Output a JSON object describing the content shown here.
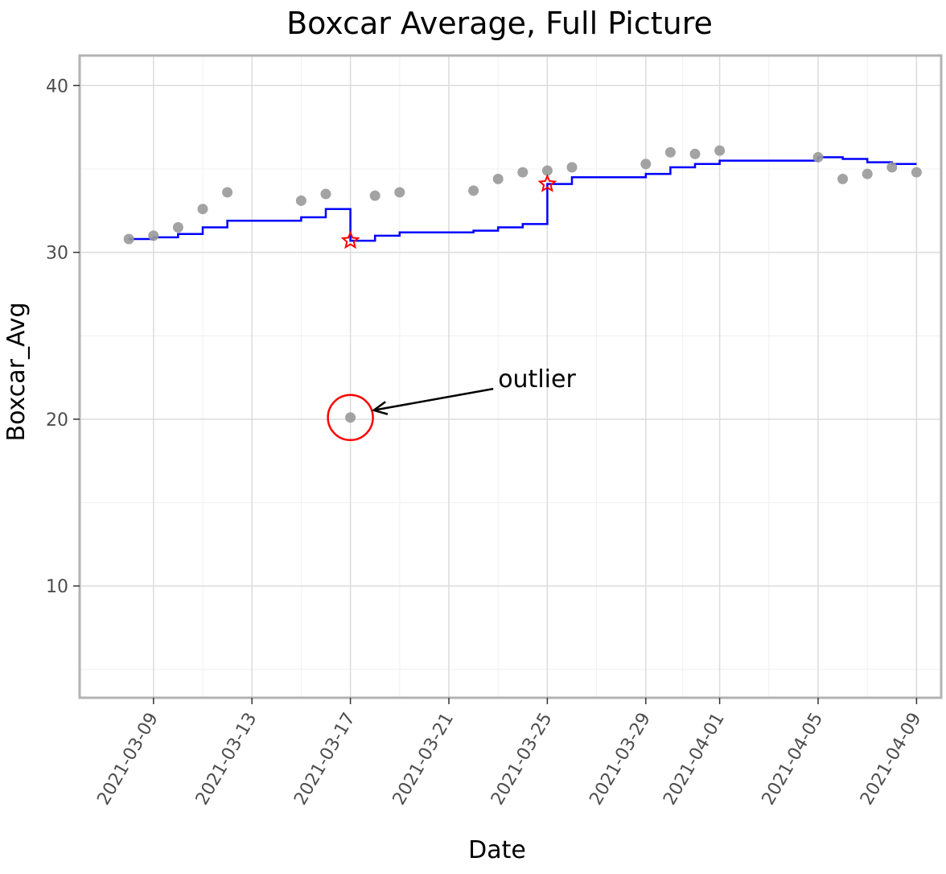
{
  "chart_data": {
    "type": "scatter",
    "title": "Boxcar Average, Full Picture",
    "xlabel": "Date",
    "ylabel": "Boxcar_Avg",
    "x_ticks": [
      "2021-03-09",
      "2021-03-13",
      "2021-03-17",
      "2021-03-21",
      "2021-03-25",
      "2021-03-29",
      "2021-04-01",
      "2021-04-05",
      "2021-04-09"
    ],
    "y_ticks": [
      "10",
      "20",
      "30",
      "40"
    ],
    "xlim": [
      "2021-03-06",
      "2021-04-10"
    ],
    "ylim": [
      3.3,
      41.8
    ],
    "grid": true,
    "points": [
      {
        "x": "2021-03-08",
        "y": 30.8
      },
      {
        "x": "2021-03-09",
        "y": 31.0
      },
      {
        "x": "2021-03-10",
        "y": 31.5
      },
      {
        "x": "2021-03-11",
        "y": 32.6
      },
      {
        "x": "2021-03-12",
        "y": 33.6
      },
      {
        "x": "2021-03-15",
        "y": 33.1
      },
      {
        "x": "2021-03-16",
        "y": 33.5
      },
      {
        "x": "2021-03-17",
        "y": 20.1
      },
      {
        "x": "2021-03-18",
        "y": 33.4
      },
      {
        "x": "2021-03-19",
        "y": 33.6
      },
      {
        "x": "2021-03-22",
        "y": 33.7
      },
      {
        "x": "2021-03-23",
        "y": 34.4
      },
      {
        "x": "2021-03-24",
        "y": 34.8
      },
      {
        "x": "2021-03-25",
        "y": 34.9
      },
      {
        "x": "2021-03-26",
        "y": 35.1
      },
      {
        "x": "2021-03-29",
        "y": 35.3
      },
      {
        "x": "2021-03-30",
        "y": 36.0
      },
      {
        "x": "2021-03-31",
        "y": 35.9
      },
      {
        "x": "2021-04-01",
        "y": 36.1
      },
      {
        "x": "2021-04-05",
        "y": 35.7
      },
      {
        "x": "2021-04-06",
        "y": 34.4
      },
      {
        "x": "2021-04-07",
        "y": 34.7
      },
      {
        "x": "2021-04-08",
        "y": 35.1
      },
      {
        "x": "2021-04-09",
        "y": 34.8
      }
    ],
    "boxcar_step": [
      {
        "x": "2021-03-08",
        "y": 30.8
      },
      {
        "x": "2021-03-09",
        "y": 30.9
      },
      {
        "x": "2021-03-10",
        "y": 31.1
      },
      {
        "x": "2021-03-11",
        "y": 31.5
      },
      {
        "x": "2021-03-12",
        "y": 31.9
      },
      {
        "x": "2021-03-15",
        "y": 32.1
      },
      {
        "x": "2021-03-16",
        "y": 32.6
      },
      {
        "x": "2021-03-17",
        "y": 30.7
      },
      {
        "x": "2021-03-18",
        "y": 31.0
      },
      {
        "x": "2021-03-19",
        "y": 31.2
      },
      {
        "x": "2021-03-22",
        "y": 31.3
      },
      {
        "x": "2021-03-23",
        "y": 31.5
      },
      {
        "x": "2021-03-24",
        "y": 31.7
      },
      {
        "x": "2021-03-25",
        "y": 34.1
      },
      {
        "x": "2021-03-26",
        "y": 34.5
      },
      {
        "x": "2021-03-29",
        "y": 34.7
      },
      {
        "x": "2021-03-30",
        "y": 35.1
      },
      {
        "x": "2021-03-31",
        "y": 35.3
      },
      {
        "x": "2021-04-01",
        "y": 35.5
      },
      {
        "x": "2021-04-05",
        "y": 35.7
      },
      {
        "x": "2021-04-06",
        "y": 35.6
      },
      {
        "x": "2021-04-07",
        "y": 35.4
      },
      {
        "x": "2021-04-08",
        "y": 35.3
      },
      {
        "x": "2021-04-09",
        "y": 35.3
      }
    ],
    "star_markers": [
      {
        "x": "2021-03-17",
        "y": 30.7
      },
      {
        "x": "2021-03-25",
        "y": 34.1
      }
    ],
    "annotation": {
      "text": "outlier",
      "target": {
        "x": "2021-03-17",
        "y": 20.1
      },
      "text_position": {
        "x": "2021-03-23",
        "y": 22.4
      }
    },
    "colors": {
      "points": "#999999",
      "step_line": "#0000ff",
      "stars": "#ff0000",
      "outlier_circle": "#ff0000",
      "panel_border": "#b3b3b3",
      "grid_major": "#dcdcdc",
      "grid_minor": "#f0f0f0",
      "tick_label": "#4d4d4d"
    }
  }
}
